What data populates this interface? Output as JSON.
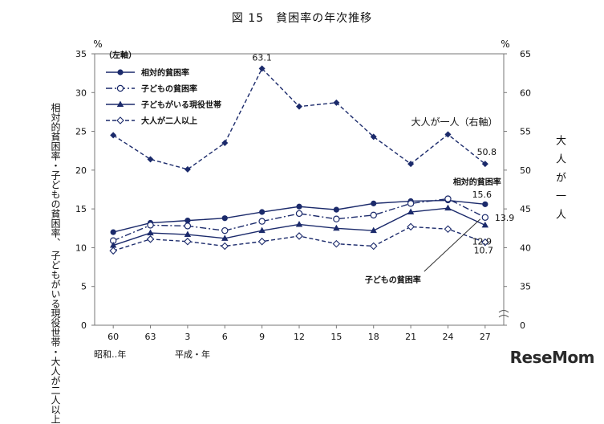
{
  "title": "図 15　貧困率の年次推移",
  "eras": [
    "昭和‥年",
    "平成・年"
  ],
  "logo": "ReseMom",
  "chart_data": {
    "type": "line",
    "x_categories": [
      "60",
      "63",
      "3",
      "6",
      "9",
      "12",
      "15",
      "18",
      "21",
      "24",
      "27"
    ],
    "left_axis": {
      "unit": "%",
      "range": [
        0,
        35
      ],
      "ticks": [
        0,
        5,
        10,
        15,
        20,
        25,
        30,
        35
      ],
      "label": "相対的貧困率・子どもの貧困率、\n子どもがいる現役世帯・大人が二人以上",
      "note": "（左軸）"
    },
    "right_axis": {
      "unit": "%",
      "ticks": [
        0,
        35,
        40,
        45,
        50,
        55,
        60,
        65
      ],
      "label": "大人が一人"
    },
    "series": [
      {
        "name": "相対的貧困率",
        "axis": "left",
        "color": "#1b2a6b",
        "style": "solid",
        "marker": "filled-circle",
        "values": [
          12.0,
          13.2,
          13.5,
          13.8,
          14.6,
          15.3,
          14.9,
          15.7,
          16.0,
          16.1,
          15.6
        ]
      },
      {
        "name": "子どもの貧困率",
        "axis": "left",
        "color": "#1b2a6b",
        "style": "dashdot",
        "marker": "open-circle",
        "values": [
          10.9,
          12.9,
          12.8,
          12.2,
          13.4,
          14.4,
          13.7,
          14.2,
          15.7,
          16.3,
          13.9
        ]
      },
      {
        "name": "子どもがいる現役世帯",
        "axis": "left",
        "color": "#1b2a6b",
        "style": "solid",
        "marker": "filled-triangle",
        "values": [
          10.3,
          11.9,
          11.7,
          11.2,
          12.2,
          13.0,
          12.5,
          12.2,
          14.6,
          15.1,
          12.9
        ]
      },
      {
        "name": "大人が二人以上",
        "axis": "left",
        "color": "#1b2a6b",
        "style": "dashed",
        "marker": "open-diamond",
        "values": [
          9.6,
          11.1,
          10.8,
          10.2,
          10.8,
          11.5,
          10.5,
          10.2,
          12.7,
          12.4,
          10.7
        ]
      },
      {
        "name": "大人が一人（右軸）",
        "axis": "right",
        "color": "#1b2a6b",
        "style": "dashed",
        "marker": "filled-diamond",
        "values": [
          54.5,
          51.4,
          50.1,
          53.5,
          63.1,
          58.2,
          58.7,
          54.3,
          50.8,
          54.6,
          50.8
        ]
      }
    ],
    "annotations": {
      "peak": "63.1",
      "single_adult": "大人が一人（右軸）",
      "single_adult_end": "50.8",
      "relative_label": "相対的貧困率",
      "relative_end": "15.6",
      "child_end": "13.9",
      "household_end": "12.9",
      "two_adult_end": "10.7",
      "child_pointer": "子どもの貧困率"
    }
  }
}
